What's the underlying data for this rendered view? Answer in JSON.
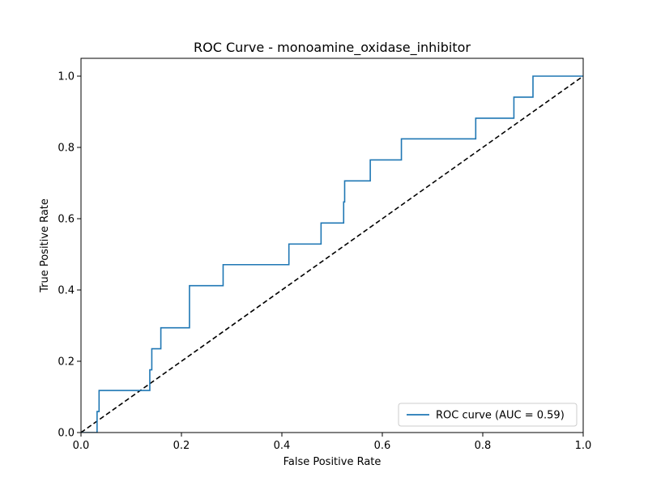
{
  "chart_data": {
    "type": "line",
    "title": "ROC Curve - monoamine_oxidase_inhibitor",
    "xlabel": "False Positive Rate",
    "ylabel": "True Positive Rate",
    "xlim": [
      0.0,
      1.0
    ],
    "ylim": [
      0.0,
      1.05
    ],
    "xticks": [
      0.0,
      0.2,
      0.4,
      0.6,
      0.8,
      1.0
    ],
    "yticks": [
      0.0,
      0.2,
      0.4,
      0.6,
      0.8,
      1.0
    ],
    "xtick_labels": [
      "0.0",
      "0.2",
      "0.4",
      "0.6",
      "0.8",
      "1.0"
    ],
    "ytick_labels": [
      "0.0",
      "0.2",
      "0.4",
      "0.6",
      "0.8",
      "1.0"
    ],
    "grid": false,
    "legend_position": "lower-right",
    "series": [
      {
        "name": "ROC curve (AUC = 0.59)",
        "color": "#1f77b4",
        "style": "solid",
        "x": [
          0.0,
          0.032,
          0.032,
          0.036,
          0.036,
          0.137,
          0.137,
          0.141,
          0.141,
          0.159,
          0.159,
          0.216,
          0.216,
          0.283,
          0.283,
          0.414,
          0.414,
          0.478,
          0.478,
          0.523,
          0.523,
          0.525,
          0.525,
          0.576,
          0.576,
          0.638,
          0.638,
          0.786,
          0.786,
          0.862,
          0.862,
          0.9,
          0.9,
          1.0
        ],
        "y": [
          0.0,
          0.0,
          0.059,
          0.059,
          0.118,
          0.118,
          0.176,
          0.176,
          0.235,
          0.235,
          0.294,
          0.294,
          0.412,
          0.412,
          0.471,
          0.471,
          0.529,
          0.529,
          0.588,
          0.588,
          0.647,
          0.647,
          0.706,
          0.706,
          0.765,
          0.765,
          0.824,
          0.824,
          0.882,
          0.882,
          0.941,
          0.941,
          1.0,
          1.0
        ]
      }
    ],
    "reference_line": {
      "x": [
        0.0,
        1.0
      ],
      "y": [
        0.0,
        1.0
      ],
      "color": "#000000",
      "style": "dashed"
    }
  }
}
